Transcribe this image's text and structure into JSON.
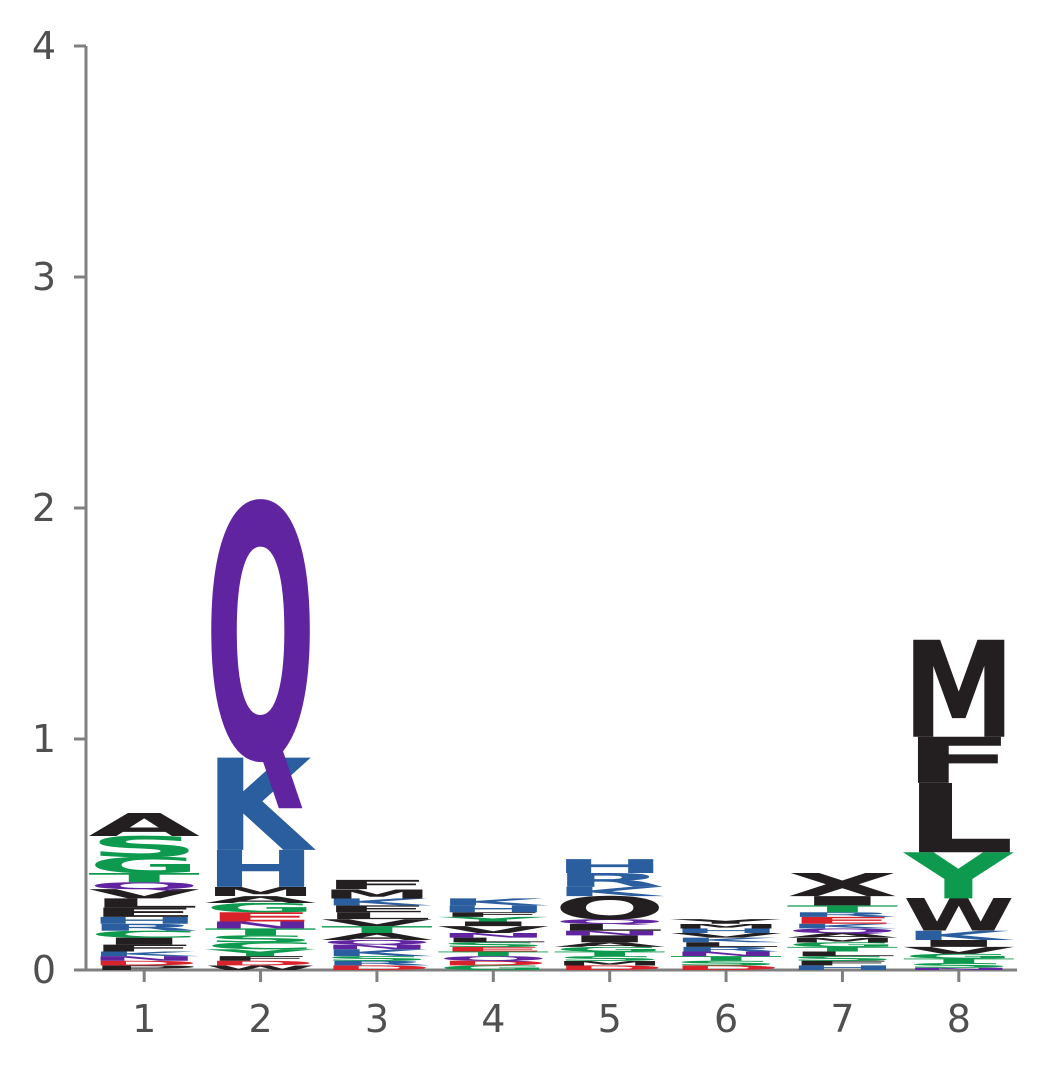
{
  "chart_data": {
    "type": "sequence-logo",
    "title": "",
    "xlabel": "",
    "ylabel": "",
    "ylim": [
      0,
      4
    ],
    "y_ticks": [
      0,
      1,
      2,
      3,
      4
    ],
    "grid": false,
    "legend": "none",
    "colors": {
      "hydrophobic": "#231f20",
      "polar": "#0d9a4e",
      "basic": "#2a5e9e",
      "amide": "#6124a0",
      "acidic": "#d8232a"
    },
    "positions": [
      {
        "label": "1",
        "stack": [
          {
            "letter": "P",
            "group": "hydrophobic",
            "height": 0.02
          },
          {
            "letter": "D",
            "group": "acidic",
            "height": 0.02
          },
          {
            "letter": "N",
            "group": "amide",
            "height": 0.02
          },
          {
            "letter": "K",
            "group": "basic",
            "height": 0.02
          },
          {
            "letter": "F",
            "group": "hydrophobic",
            "height": 0.03
          },
          {
            "letter": "I",
            "group": "hydrophobic",
            "height": 0.03
          },
          {
            "letter": "C",
            "group": "polar",
            "height": 0.03
          },
          {
            "letter": "R",
            "group": "basic",
            "height": 0.03
          },
          {
            "letter": "H",
            "group": "basic",
            "height": 0.03
          },
          {
            "letter": "E",
            "group": "hydrophobic",
            "height": 0.04
          },
          {
            "letter": "L",
            "group": "hydrophobic",
            "height": 0.04
          },
          {
            "letter": "V",
            "group": "hydrophobic",
            "height": 0.04
          },
          {
            "letter": "Q",
            "group": "amide",
            "height": 0.03
          },
          {
            "letter": "T",
            "group": "polar",
            "height": 0.04
          },
          {
            "letter": "G",
            "group": "polar",
            "height": 0.07
          },
          {
            "letter": "S",
            "group": "polar",
            "height": 0.09
          },
          {
            "letter": "A",
            "group": "hydrophobic",
            "height": 0.1
          }
        ]
      },
      {
        "label": "2",
        "stack": [
          {
            "letter": "W",
            "group": "hydrophobic",
            "height": 0.02
          },
          {
            "letter": "D",
            "group": "acidic",
            "height": 0.02
          },
          {
            "letter": "F",
            "group": "hydrophobic",
            "height": 0.02
          },
          {
            "letter": "Y",
            "group": "polar",
            "height": 0.03
          },
          {
            "letter": "C",
            "group": "polar",
            "height": 0.03
          },
          {
            "letter": "S",
            "group": "polar",
            "height": 0.03
          },
          {
            "letter": "T",
            "group": "polar",
            "height": 0.03
          },
          {
            "letter": "N",
            "group": "amide",
            "height": 0.03
          },
          {
            "letter": "E",
            "group": "acidic",
            "height": 0.04
          },
          {
            "letter": "G",
            "group": "polar",
            "height": 0.04
          },
          {
            "letter": "A",
            "group": "hydrophobic",
            "height": 0.03
          },
          {
            "letter": "M",
            "group": "hydrophobic",
            "height": 0.04
          },
          {
            "letter": "H",
            "group": "basic",
            "height": 0.16
          },
          {
            "letter": "K",
            "group": "basic",
            "height": 0.4
          },
          {
            "letter": "Q",
            "group": "amide",
            "height": 1.1
          }
        ]
      },
      {
        "label": "3",
        "stack": [
          {
            "letter": "D",
            "group": "acidic",
            "height": 0.02
          },
          {
            "letter": "R",
            "group": "basic",
            "height": 0.02
          },
          {
            "letter": "S",
            "group": "polar",
            "height": 0.02
          },
          {
            "letter": "K",
            "group": "basic",
            "height": 0.03
          },
          {
            "letter": "N",
            "group": "amide",
            "height": 0.02
          },
          {
            "letter": "Q",
            "group": "amide",
            "height": 0.02
          },
          {
            "letter": "A",
            "group": "hydrophobic",
            "height": 0.03
          },
          {
            "letter": "T",
            "group": "polar",
            "height": 0.03
          },
          {
            "letter": "V",
            "group": "hydrophobic",
            "height": 0.03
          },
          {
            "letter": "L",
            "group": "hydrophobic",
            "height": 0.03
          },
          {
            "letter": "E",
            "group": "hydrophobic",
            "height": 0.03
          },
          {
            "letter": "K",
            "group": "basic",
            "height": 0.03
          },
          {
            "letter": "M",
            "group": "hydrophobic",
            "height": 0.04
          },
          {
            "letter": "F",
            "group": "hydrophobic",
            "height": 0.04
          }
        ]
      },
      {
        "label": "4",
        "stack": [
          {
            "letter": "G",
            "group": "polar",
            "height": 0.02
          },
          {
            "letter": "D",
            "group": "acidic",
            "height": 0.02
          },
          {
            "letter": "Q",
            "group": "amide",
            "height": 0.02
          },
          {
            "letter": "T",
            "group": "polar",
            "height": 0.02
          },
          {
            "letter": "E",
            "group": "acidic",
            "height": 0.02
          },
          {
            "letter": "S",
            "group": "polar",
            "height": 0.02
          },
          {
            "letter": "L",
            "group": "hydrophobic",
            "height": 0.02
          },
          {
            "letter": "N",
            "group": "amide",
            "height": 0.02
          },
          {
            "letter": "V",
            "group": "hydrophobic",
            "height": 0.03
          },
          {
            "letter": "I",
            "group": "hydrophobic",
            "height": 0.02
          },
          {
            "letter": "Y",
            "group": "polar",
            "height": 0.02
          },
          {
            "letter": "F",
            "group": "hydrophobic",
            "height": 0.02
          },
          {
            "letter": "H",
            "group": "basic",
            "height": 0.03
          },
          {
            "letter": "K",
            "group": "basic",
            "height": 0.03
          }
        ]
      },
      {
        "label": "5",
        "stack": [
          {
            "letter": "D",
            "group": "acidic",
            "height": 0.02
          },
          {
            "letter": "M",
            "group": "hydrophobic",
            "height": 0.02
          },
          {
            "letter": "S",
            "group": "polar",
            "height": 0.02
          },
          {
            "letter": "T",
            "group": "polar",
            "height": 0.02
          },
          {
            "letter": "G",
            "group": "polar",
            "height": 0.02
          },
          {
            "letter": "A",
            "group": "hydrophobic",
            "height": 0.02
          },
          {
            "letter": "I",
            "group": "hydrophobic",
            "height": 0.03
          },
          {
            "letter": "N",
            "group": "amide",
            "height": 0.02
          },
          {
            "letter": "L",
            "group": "hydrophobic",
            "height": 0.03
          },
          {
            "letter": "Q",
            "group": "amide",
            "height": 0.02
          },
          {
            "letter": "O",
            "group": "hydrophobic",
            "height": 0.1
          },
          {
            "letter": "K",
            "group": "basic",
            "height": 0.04
          },
          {
            "letter": "R",
            "group": "basic",
            "height": 0.06
          },
          {
            "letter": "H",
            "group": "basic",
            "height": 0.06
          }
        ]
      },
      {
        "label": "6",
        "stack": [
          {
            "letter": "D",
            "group": "acidic",
            "height": 0.02
          },
          {
            "letter": "S",
            "group": "polar",
            "height": 0.02
          },
          {
            "letter": "T",
            "group": "polar",
            "height": 0.02
          },
          {
            "letter": "N",
            "group": "amide",
            "height": 0.02
          },
          {
            "letter": "R",
            "group": "basic",
            "height": 0.02
          },
          {
            "letter": "L",
            "group": "hydrophobic",
            "height": 0.02
          },
          {
            "letter": "K",
            "group": "basic",
            "height": 0.02
          },
          {
            "letter": "V",
            "group": "hydrophobic",
            "height": 0.02
          },
          {
            "letter": "H",
            "group": "basic",
            "height": 0.02
          },
          {
            "letter": "M",
            "group": "hydrophobic",
            "height": 0.02
          },
          {
            "letter": "Y",
            "group": "hydrophobic",
            "height": 0.02
          }
        ]
      },
      {
        "label": "7",
        "stack": [
          {
            "letter": "H",
            "group": "basic",
            "height": 0.02
          },
          {
            "letter": "F",
            "group": "hydrophobic",
            "height": 0.02
          },
          {
            "letter": "S",
            "group": "polar",
            "height": 0.02
          },
          {
            "letter": "L",
            "group": "hydrophobic",
            "height": 0.02
          },
          {
            "letter": "T",
            "group": "polar",
            "height": 0.02
          },
          {
            "letter": "G",
            "group": "polar",
            "height": 0.02
          },
          {
            "letter": "M",
            "group": "hydrophobic",
            "height": 0.02
          },
          {
            "letter": "A",
            "group": "hydrophobic",
            "height": 0.02
          },
          {
            "letter": "Q",
            "group": "amide",
            "height": 0.02
          },
          {
            "letter": "K",
            "group": "basic",
            "height": 0.02
          },
          {
            "letter": "E",
            "group": "acidic",
            "height": 0.03
          },
          {
            "letter": "R",
            "group": "basic",
            "height": 0.02
          },
          {
            "letter": "T",
            "group": "polar",
            "height": 0.03
          },
          {
            "letter": "I",
            "group": "hydrophobic",
            "height": 0.04
          },
          {
            "letter": "X",
            "group": "hydrophobic",
            "height": 0.1
          }
        ]
      },
      {
        "label": "8",
        "stack": [
          {
            "letter": "N",
            "group": "amide",
            "height": 0.01
          },
          {
            "letter": "S",
            "group": "polar",
            "height": 0.02
          },
          {
            "letter": "T",
            "group": "polar",
            "height": 0.02
          },
          {
            "letter": "G",
            "group": "polar",
            "height": 0.02
          },
          {
            "letter": "V",
            "group": "hydrophobic",
            "height": 0.03
          },
          {
            "letter": "I",
            "group": "hydrophobic",
            "height": 0.03
          },
          {
            "letter": "K",
            "group": "basic",
            "height": 0.04
          },
          {
            "letter": "W",
            "group": "hydrophobic",
            "height": 0.14
          },
          {
            "letter": "Y",
            "group": "polar",
            "height": 0.2
          },
          {
            "letter": "L",
            "group": "hydrophobic",
            "height": 0.3
          },
          {
            "letter": "F",
            "group": "hydrophobic",
            "height": 0.2
          },
          {
            "letter": "M",
            "group": "hydrophobic",
            "height": 0.42
          }
        ]
      }
    ]
  }
}
